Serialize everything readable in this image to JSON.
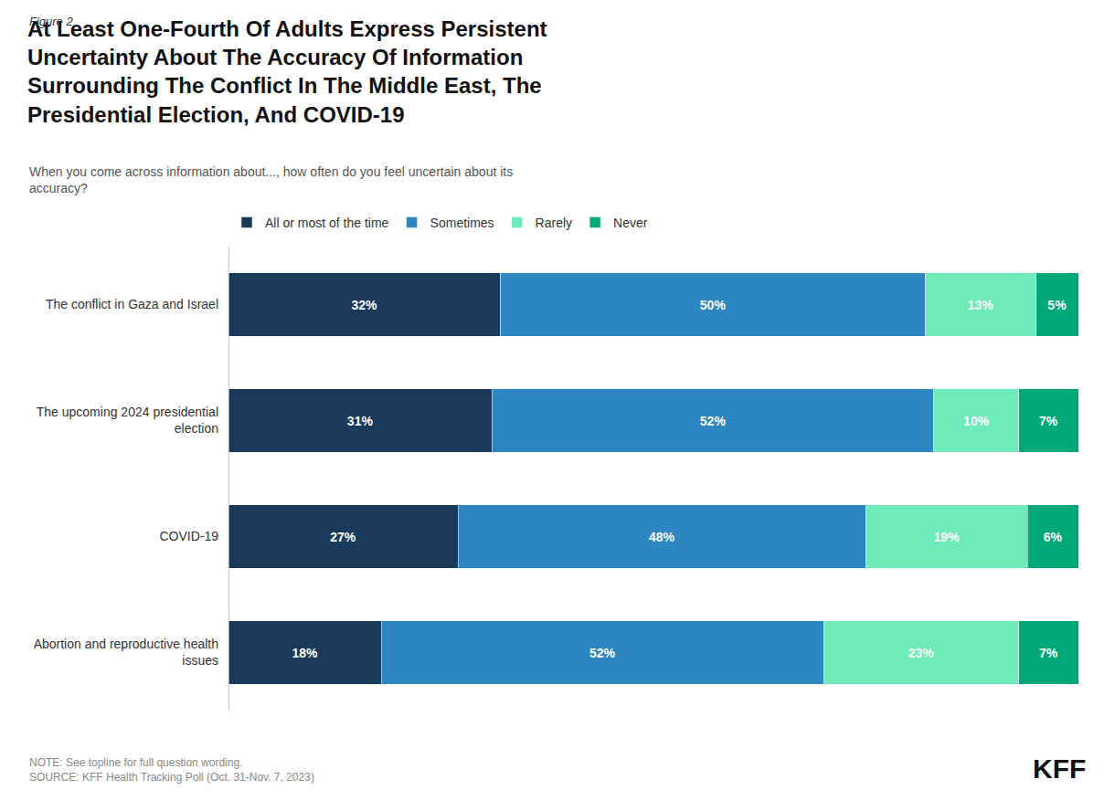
{
  "chart_data": {
    "type": "bar",
    "orientation": "horizontal",
    "stacked": true,
    "title": "At Least One-Fourth Of Adults Express Persistent\nUncertainty About The Accuracy Of Information\nSurrounding The Conflict In The Middle East, The\nPresidential Election, And COVID-19",
    "subtitle": "When you come across information about..., how often do you feel uncertain about its\naccuracy?",
    "annotations": [
      "Figure 2",
      "NOTE: See topline for full question wording.\nSOURCE: KFF Health Tracking Poll (Oct. 31-Nov. 7, 2023)",
      "KFF"
    ],
    "categories": [
      "The conflict in Gaza and Israel",
      "The upcoming 2024 presidential\nelection",
      "COVID-19",
      "Abortion and reproductive health\nissues"
    ],
    "series": [
      {
        "name": "All or most of the time",
        "color": "#1a3a5c",
        "values": [
          32,
          31,
          27,
          18
        ],
        "value_labels": [
          "32%",
          "31%",
          "27%",
          "18%"
        ]
      },
      {
        "name": "Sometimes",
        "color": "#2e86c1",
        "values": [
          50,
          52,
          48,
          52
        ],
        "value_labels": [
          "50%",
          "52%",
          "48%",
          "52%"
        ]
      },
      {
        "name": "Rarely",
        "color": "#6eebb8",
        "values": [
          13,
          10,
          19,
          23
        ],
        "value_labels": [
          "13%",
          "10%",
          "19%",
          "23%"
        ]
      },
      {
        "name": "Never",
        "color": "#00a878",
        "values": [
          5,
          7,
          6,
          7
        ],
        "value_labels": [
          "5%",
          "7%",
          "6%",
          "7%"
        ]
      }
    ],
    "xlim": [
      0,
      100
    ],
    "data_labels": true,
    "tick_labels": "y",
    "grid": false,
    "legend": "upper left"
  }
}
